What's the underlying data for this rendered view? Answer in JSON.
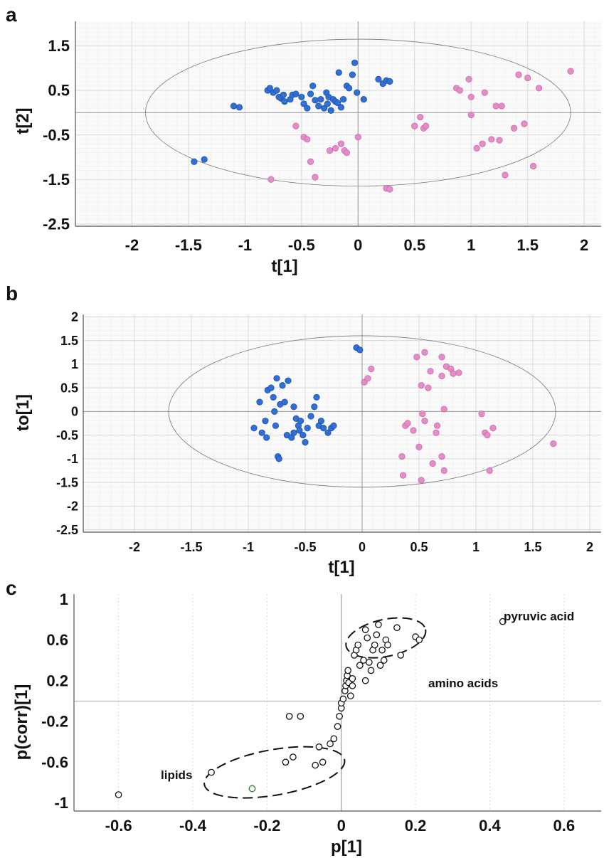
{
  "chart_data": [
    {
      "panel": "a",
      "type": "scatter",
      "xlabel": "t[1]",
      "ylabel": "t[2]",
      "xlim": [
        -2.5,
        2.15
      ],
      "ylim": [
        -2.55,
        2.05
      ],
      "xticks": [
        "-2",
        "-1.5",
        "-1",
        "-0.5",
        "0",
        "0.5",
        "1",
        "1.5",
        "2"
      ],
      "yticks": [
        "1.5",
        "0.5",
        "-0.5",
        "-1.5",
        "-2.5"
      ],
      "grid": true,
      "colors": {
        "blue": "#2f6fd6",
        "pink": "#e58dc8",
        "grid": "#e6e6e6"
      },
      "ellipse": {
        "cx": 0.0,
        "cy": 0.0,
        "rx": 1.88,
        "ry": 1.65
      },
      "series": [
        {
          "color": "blue",
          "points": [
            [
              -1.45,
              -1.1
            ],
            [
              -1.36,
              -1.05
            ],
            [
              -1.1,
              0.15
            ],
            [
              -1.05,
              0.12
            ],
            [
              -0.8,
              0.5
            ],
            [
              -0.78,
              0.55
            ],
            [
              -0.75,
              0.45
            ],
            [
              -0.72,
              0.5
            ],
            [
              -0.68,
              0.32
            ],
            [
              -0.65,
              0.25
            ],
            [
              -0.6,
              0.3
            ],
            [
              -0.58,
              0.4
            ],
            [
              -0.55,
              0.42
            ],
            [
              -0.5,
              0.35
            ],
            [
              -0.48,
              0.2
            ],
            [
              -0.45,
              0.1
            ],
            [
              -0.42,
              0.42
            ],
            [
              -0.4,
              0.6
            ],
            [
              -0.38,
              0.28
            ],
            [
              -0.33,
              0.3
            ],
            [
              -0.3,
              0.1
            ],
            [
              -0.28,
              0.45
            ],
            [
              -0.26,
              0.35
            ],
            [
              -0.24,
              0.05
            ],
            [
              -0.22,
              0.3
            ],
            [
              -0.2,
              0.25
            ],
            [
              -0.18,
              0.22
            ],
            [
              -0.17,
              0.9
            ],
            [
              -0.15,
              0.12
            ],
            [
              -0.13,
              0.3
            ],
            [
              -0.1,
              0.6
            ],
            [
              -0.08,
              0.55
            ],
            [
              -0.05,
              0.85
            ],
            [
              -0.03,
              1.12
            ],
            [
              -0.01,
              0.45
            ],
            [
              0.05,
              0.3
            ],
            [
              0.18,
              0.75
            ],
            [
              0.22,
              0.65
            ],
            [
              0.25,
              0.72
            ],
            [
              0.28,
              0.7
            ],
            [
              -0.7,
              0.35
            ],
            [
              -0.66,
              0.4
            ],
            [
              -0.35,
              0.15
            ],
            [
              -0.27,
              0.2
            ]
          ]
        },
        {
          "color": "pink",
          "points": [
            [
              -0.77,
              -1.5
            ],
            [
              -0.55,
              -0.3
            ],
            [
              -0.48,
              -0.55
            ],
            [
              -0.45,
              -0.6
            ],
            [
              -0.42,
              -1.1
            ],
            [
              -0.38,
              -1.45
            ],
            [
              -0.25,
              -0.85
            ],
            [
              -0.2,
              -0.8
            ],
            [
              -0.15,
              -0.7
            ],
            [
              -0.12,
              -0.85
            ],
            [
              -0.1,
              -0.9
            ],
            [
              0.0,
              -0.55
            ],
            [
              0.25,
              -1.7
            ],
            [
              0.28,
              -1.72
            ],
            [
              0.5,
              -0.3
            ],
            [
              0.55,
              -0.1
            ],
            [
              0.58,
              -0.35
            ],
            [
              0.6,
              -0.3
            ],
            [
              0.87,
              0.55
            ],
            [
              0.9,
              0.5
            ],
            [
              0.98,
              0.75
            ],
            [
              1.0,
              0.35
            ],
            [
              1.0,
              -0.05
            ],
            [
              1.05,
              -0.8
            ],
            [
              1.1,
              -0.7
            ],
            [
              1.12,
              0.45
            ],
            [
              1.18,
              -0.6
            ],
            [
              1.22,
              0.15
            ],
            [
              1.27,
              0.15
            ],
            [
              1.3,
              -1.4
            ],
            [
              1.38,
              -0.35
            ],
            [
              1.42,
              0.85
            ],
            [
              1.47,
              -0.25
            ],
            [
              1.5,
              0.78
            ],
            [
              1.55,
              -1.2
            ],
            [
              1.6,
              0.55
            ],
            [
              1.88,
              0.93
            ],
            [
              1.25,
              -0.62
            ]
          ]
        }
      ]
    },
    {
      "panel": "b",
      "type": "scatter",
      "xlabel": "t[1]",
      "ylabel": "to[1]",
      "xlim": [
        -2.45,
        2.1
      ],
      "ylim": [
        -2.55,
        2.05
      ],
      "xticks": [
        "-2",
        "-1.5",
        "-1",
        "-0.5",
        "0",
        "0.5",
        "1",
        "1.5",
        "2"
      ],
      "yticks": [
        "2",
        "1.5",
        "1",
        "0.5",
        "0",
        "-0.5",
        "-1",
        "-1.5",
        "-2",
        "-2.5"
      ],
      "grid": true,
      "colors": {
        "blue": "#2f6fd6",
        "pink": "#e58dc8",
        "grid": "#e6e6e6"
      },
      "ellipse": {
        "cx": 0.0,
        "cy": 0.0,
        "rx": 1.7,
        "ry": 1.6
      },
      "series": [
        {
          "color": "blue",
          "points": [
            [
              -0.95,
              -0.35
            ],
            [
              -0.9,
              0.2
            ],
            [
              -0.88,
              -0.45
            ],
            [
              -0.85,
              -0.2
            ],
            [
              -0.83,
              0.45
            ],
            [
              -0.8,
              0.5
            ],
            [
              -0.78,
              0.3
            ],
            [
              -0.77,
              0.0
            ],
            [
              -0.76,
              -0.3
            ],
            [
              -0.75,
              0.7
            ],
            [
              -0.74,
              -0.95
            ],
            [
              -0.73,
              -1.0
            ],
            [
              -0.72,
              0.15
            ],
            [
              -0.7,
              0.55
            ],
            [
              -0.68,
              0.2
            ],
            [
              -0.66,
              -0.5
            ],
            [
              -0.65,
              0.65
            ],
            [
              -0.62,
              -0.55
            ],
            [
              -0.6,
              0.1
            ],
            [
              -0.58,
              -0.15
            ],
            [
              -0.56,
              -0.3
            ],
            [
              -0.55,
              -0.4
            ],
            [
              -0.54,
              -0.2
            ],
            [
              -0.52,
              -0.5
            ],
            [
              -0.5,
              -0.65
            ],
            [
              -0.48,
              -0.35
            ],
            [
              -0.45,
              -0.1
            ],
            [
              -0.42,
              0.1
            ],
            [
              -0.4,
              0.3
            ],
            [
              -0.38,
              -0.3
            ],
            [
              -0.36,
              -0.2
            ],
            [
              -0.34,
              -0.35
            ],
            [
              -0.3,
              -0.45
            ],
            [
              -0.27,
              -0.35
            ],
            [
              -0.25,
              -0.3
            ],
            [
              -0.05,
              1.35
            ],
            [
              -0.02,
              1.3
            ],
            [
              -0.84,
              -0.55
            ],
            [
              -0.6,
              -0.45
            ]
          ]
        },
        {
          "color": "pink",
          "points": [
            [
              0.02,
              0.62
            ],
            [
              0.05,
              0.7
            ],
            [
              0.08,
              0.9
            ],
            [
              0.35,
              -0.95
            ],
            [
              0.36,
              -1.35
            ],
            [
              0.38,
              -0.3
            ],
            [
              0.4,
              -0.25
            ],
            [
              0.45,
              -0.4
            ],
            [
              0.48,
              1.15
            ],
            [
              0.5,
              -0.75
            ],
            [
              0.52,
              -1.45
            ],
            [
              0.52,
              0.55
            ],
            [
              0.53,
              -0.05
            ],
            [
              0.55,
              1.25
            ],
            [
              0.55,
              -0.2
            ],
            [
              0.58,
              0.5
            ],
            [
              0.6,
              0.85
            ],
            [
              0.62,
              -1.1
            ],
            [
              0.65,
              -0.45
            ],
            [
              0.66,
              -0.3
            ],
            [
              0.7,
              -0.95
            ],
            [
              0.7,
              1.15
            ],
            [
              0.72,
              0.05
            ],
            [
              0.72,
              -1.25
            ],
            [
              0.74,
              0.95
            ],
            [
              0.78,
              0.9
            ],
            [
              0.8,
              0.8
            ],
            [
              0.85,
              0.82
            ],
            [
              1.05,
              -0.05
            ],
            [
              1.08,
              -0.45
            ],
            [
              1.1,
              -0.5
            ],
            [
              1.12,
              -1.25
            ],
            [
              1.15,
              -0.35
            ],
            [
              1.68,
              -0.68
            ],
            [
              0.7,
              0.75
            ]
          ]
        }
      ]
    },
    {
      "panel": "c",
      "type": "scatter",
      "xlabel": "p[1]",
      "ylabel": "p(corr)[1]",
      "xlim": [
        -0.72,
        0.7
      ],
      "ylim": [
        -1.08,
        1.05
      ],
      "xticks": [
        "-0.6",
        "-0.4",
        "-0.2",
        "0",
        "0.2",
        "0.4",
        "0.6"
      ],
      "yticks": [
        "1",
        "0.6",
        "0.2",
        "-0.2",
        "-0.6",
        "-1"
      ],
      "grid": false,
      "points": [
        [
          -0.6,
          -0.92
        ],
        [
          -0.35,
          -0.7
        ],
        [
          -0.24,
          -0.86
        ],
        [
          -0.15,
          -0.6
        ],
        [
          -0.13,
          -0.55
        ],
        [
          -0.14,
          -0.15
        ],
        [
          -0.11,
          -0.15
        ],
        [
          -0.07,
          -0.63
        ],
        [
          -0.06,
          -0.45
        ],
        [
          -0.05,
          -0.6
        ],
        [
          -0.03,
          -0.42
        ],
        [
          -0.02,
          -0.37
        ],
        [
          -0.01,
          -0.25
        ],
        [
          -0.005,
          -0.15
        ],
        [
          0.0,
          -0.07
        ],
        [
          0.0,
          -0.02
        ],
        [
          0.005,
          0.02
        ],
        [
          0.01,
          0.1
        ],
        [
          0.012,
          0.15
        ],
        [
          0.014,
          0.2
        ],
        [
          0.016,
          0.25
        ],
        [
          0.018,
          0.3
        ],
        [
          0.02,
          0.18
        ],
        [
          0.025,
          0.05
        ],
        [
          0.03,
          0.22
        ],
        [
          0.03,
          0.15
        ],
        [
          0.035,
          0.45
        ],
        [
          0.04,
          0.5
        ],
        [
          0.045,
          0.55
        ],
        [
          0.05,
          0.35
        ],
        [
          0.06,
          0.4
        ],
        [
          0.065,
          0.7
        ],
        [
          0.07,
          0.62
        ],
        [
          0.075,
          0.38
        ],
        [
          0.08,
          0.3
        ],
        [
          0.085,
          0.5
        ],
        [
          0.09,
          0.55
        ],
        [
          0.095,
          0.65
        ],
        [
          0.1,
          0.75
        ],
        [
          0.105,
          0.35
        ],
        [
          0.11,
          0.5
        ],
        [
          0.115,
          0.4
        ],
        [
          0.12,
          0.6
        ],
        [
          0.125,
          0.55
        ],
        [
          0.15,
          0.72
        ],
        [
          0.16,
          0.45
        ],
        [
          0.2,
          0.63
        ],
        [
          0.21,
          0.6
        ],
        [
          0.435,
          0.78
        ],
        [
          0.065,
          0.2
        ]
      ],
      "greenPoints": [
        [
          -0.24,
          -0.86
        ]
      ],
      "annotations": {
        "pyruvic": "pyruvic acid",
        "amino": "amino acids",
        "lipids": "lipids"
      }
    }
  ],
  "panel_letters": [
    "a",
    "b",
    "c"
  ]
}
